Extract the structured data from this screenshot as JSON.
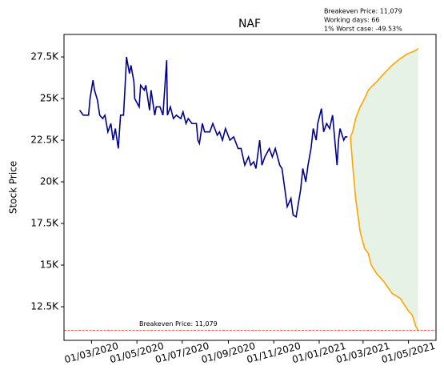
{
  "chart_data": {
    "type": "line",
    "title": "NAF",
    "ylabel": "Stock Price",
    "annotations": [
      "Breakeven Price: 11,079",
      "Working days: 66",
      "1% Worst case: -49.53%"
    ],
    "breakeven": 11079,
    "breakeven_label": "Breakeven Price: 11,079",
    "breakeven_color": "#ff0000",
    "fill_color": "#e5f2e5",
    "xlim": [
      "2020-01-24",
      "2021-06-07"
    ],
    "ylim": [
      10480,
      28850
    ],
    "xticks": [
      {
        "value": "2020-03-01",
        "label": "01/03/2020"
      },
      {
        "value": "2020-05-01",
        "label": "01/05/2020"
      },
      {
        "value": "2020-07-01",
        "label": "01/07/2020"
      },
      {
        "value": "2020-09-01",
        "label": "01/09/2020"
      },
      {
        "value": "2020-11-01",
        "label": "01/11/2020"
      },
      {
        "value": "2021-01-01",
        "label": "01/01/2021"
      },
      {
        "value": "2021-03-01",
        "label": "01/03/2021"
      },
      {
        "value": "2021-05-01",
        "label": "01/05/2021"
      }
    ],
    "yticks": [
      {
        "value": 12500,
        "label": "12.5K"
      },
      {
        "value": 15000,
        "label": "15K"
      },
      {
        "value": 17500,
        "label": "17.5K"
      },
      {
        "value": 20000,
        "label": "20K"
      },
      {
        "value": 22500,
        "label": "22.5K"
      },
      {
        "value": 25000,
        "label": "25K"
      },
      {
        "value": 27500,
        "label": "27.5K"
      }
    ],
    "series": [
      {
        "color": "#00008b",
        "x": [
          "2020-02-14",
          "2020-02-19",
          "2020-02-26",
          "2020-02-28",
          "2020-03-03",
          "2020-03-05",
          "2020-03-09",
          "2020-03-12",
          "2020-03-16",
          "2020-03-19",
          "2020-03-23",
          "2020-03-27",
          "2020-03-30",
          "2020-04-02",
          "2020-04-06",
          "2020-04-09",
          "2020-04-13",
          "2020-04-16",
          "2020-04-17",
          "2020-04-21",
          "2020-04-23",
          "2020-04-27",
          "2020-04-28",
          "2020-05-04",
          "2020-05-06",
          "2020-05-11",
          "2020-05-13",
          "2020-05-18",
          "2020-05-20",
          "2020-05-25",
          "2020-05-27",
          "2020-06-01",
          "2020-06-05",
          "2020-06-08",
          "2020-06-10",
          "2020-06-11",
          "2020-06-15",
          "2020-06-19",
          "2020-06-23",
          "2020-06-29",
          "2020-07-02",
          "2020-07-06",
          "2020-07-09",
          "2020-07-14",
          "2020-07-20",
          "2020-07-22",
          "2020-07-24",
          "2020-07-28",
          "2020-07-31",
          "2020-08-07",
          "2020-08-11",
          "2020-08-17",
          "2020-08-20",
          "2020-08-24",
          "2020-08-28",
          "2020-09-03",
          "2020-09-08",
          "2020-09-14",
          "2020-09-18",
          "2020-09-23",
          "2020-09-28",
          "2020-10-01",
          "2020-10-05",
          "2020-10-08",
          "2020-10-13",
          "2020-10-16",
          "2020-10-20",
          "2020-10-26",
          "2020-10-30",
          "2020-11-03",
          "2020-11-09",
          "2020-11-12",
          "2020-11-16",
          "2020-11-19",
          "2020-11-24",
          "2020-11-27",
          "2020-12-01",
          "2020-12-07",
          "2020-12-10",
          "2020-12-14",
          "2020-12-17",
          "2020-12-21",
          "2020-12-24",
          "2020-12-28",
          "2020-12-30",
          "2021-01-04",
          "2021-01-07",
          "2021-01-11",
          "2021-01-15",
          "2021-01-19",
          "2021-01-22",
          "2021-01-25",
          "2021-01-27",
          "2021-01-29",
          "2021-02-03",
          "2021-02-05",
          "2021-02-08"
        ],
        "values": [
          24300,
          24000,
          24000,
          25000,
          26100,
          25500,
          24900,
          24000,
          23800,
          24000,
          23000,
          23500,
          22500,
          23200,
          22000,
          24000,
          24000,
          26500,
          27500,
          26500,
          27000,
          26000,
          25000,
          24500,
          25800,
          25500,
          25800,
          24300,
          25500,
          24000,
          24500,
          24500,
          24000,
          26000,
          27300,
          24000,
          24500,
          23800,
          24000,
          23800,
          24200,
          23500,
          23800,
          23500,
          23500,
          22500,
          22300,
          23500,
          23000,
          23000,
          23500,
          22800,
          23000,
          22500,
          23200,
          22500,
          22700,
          22000,
          22000,
          21000,
          21500,
          21000,
          21200,
          20800,
          22500,
          21000,
          21500,
          22000,
          21500,
          22000,
          21000,
          20800,
          19500,
          18500,
          19000,
          18000,
          17900,
          19500,
          20800,
          20000,
          21000,
          22000,
          23200,
          22500,
          23500,
          24400,
          23000,
          23500,
          23200,
          24000,
          22500,
          21000,
          22500,
          23200,
          22500,
          22700,
          22700
        ]
      },
      {
        "color": "#ffa500",
        "x": [
          "2021-02-12",
          "2021-02-15",
          "2021-02-19",
          "2021-02-25",
          "2021-03-03",
          "2021-03-08",
          "2021-03-12",
          "2021-03-19",
          "2021-03-29",
          "2021-04-09",
          "2021-04-20",
          "2021-04-30",
          "2021-05-06",
          "2021-05-11",
          "2021-05-14"
        ],
        "values": [
          22700,
          23000,
          23800,
          24500,
          25000,
          25500,
          25700,
          26000,
          26500,
          27000,
          27400,
          27700,
          27800,
          27900,
          28000
        ]
      },
      {
        "color": "#ffa500",
        "x": [
          "2021-02-12",
          "2021-02-15",
          "2021-02-19",
          "2021-02-25",
          "2021-03-03",
          "2021-03-08",
          "2021-03-12",
          "2021-03-19",
          "2021-03-29",
          "2021-04-09",
          "2021-04-20",
          "2021-04-30",
          "2021-05-06",
          "2021-05-11",
          "2021-05-14"
        ],
        "values": [
          22700,
          21000,
          19000,
          17000,
          16000,
          15700,
          15000,
          14500,
          14000,
          13300,
          13000,
          12300,
          12000,
          11300,
          11080
        ]
      }
    ]
  }
}
